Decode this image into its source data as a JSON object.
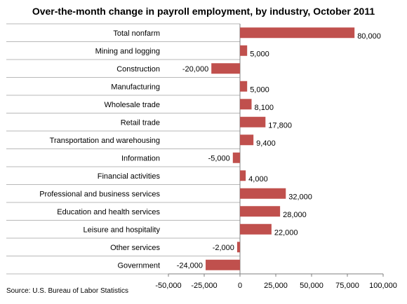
{
  "chart_data": {
    "type": "bar",
    "orientation": "horizontal",
    "title": "Over-the-month change in payroll employment, by industry,  October 2011",
    "source": "Source: U.S. Bureau of Labor Statistics",
    "xlim": [
      -50000,
      100000
    ],
    "xticks": [
      "-50,000",
      "-25,000",
      "0",
      "25,000",
      "50,000",
      "75,000",
      "100,000"
    ],
    "grid": false,
    "legend": "none",
    "bar_color": "#c0504d",
    "categories": [
      "Total nonfarm",
      "Mining and logging",
      "Construction",
      "Manufacturing",
      "Wholesale trade",
      "Retail trade",
      "Transportation and warehousing",
      "Information",
      "Financial activities",
      "Professional and business services",
      "Education and health services",
      "Leisure and hospitality",
      "Other services",
      "Government"
    ],
    "values": [
      80000,
      5000,
      -20000,
      5000,
      8100,
      17800,
      9400,
      -5000,
      4000,
      32000,
      28000,
      22000,
      -2000,
      -24000
    ],
    "value_labels": [
      "80,000",
      "5,000",
      "-20,000",
      "5,000",
      "8,100",
      "17,800",
      "9,400",
      "-5,000",
      "4,000",
      "32,000",
      "28,000",
      "22,000",
      "-2,000",
      "-24,000"
    ]
  }
}
